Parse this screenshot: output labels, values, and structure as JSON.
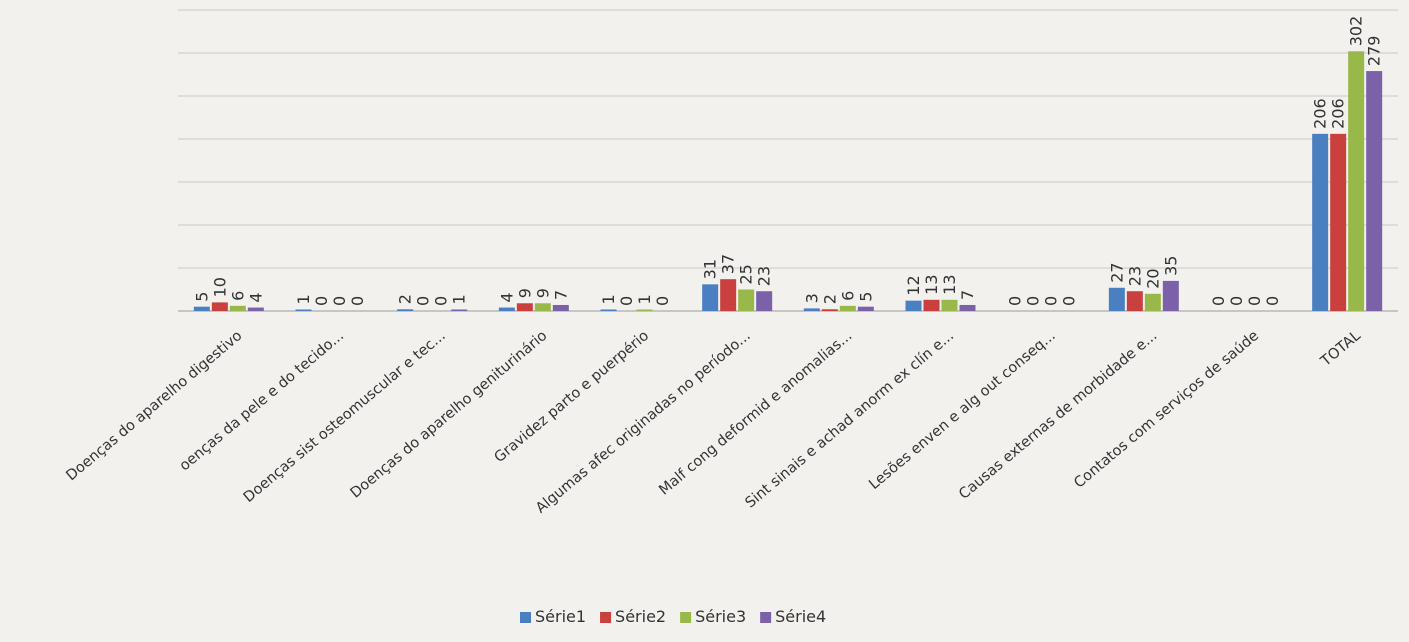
{
  "chart_data": {
    "type": "bar",
    "title": "",
    "xlabel": "",
    "ylabel": "",
    "ylim": [
      0,
      350
    ],
    "grid": true,
    "legend_position": "bottom",
    "categories": [
      "Doenças do aparelho digestivo",
      "oenças da pele e do tecido...",
      "Doenças sist osteomuscular e tec...",
      "Doenças do aparelho geniturinário",
      "Gravidez parto e puerpério",
      "Algumas afec originadas no período...",
      "Malf cong deformid e anomalias...",
      "Sint sinais e achad anorm ex clín e...",
      "Lesões enven e alg out conseq...",
      "Causas externas de morbidade e...",
      "Contatos com serviços de saúde",
      "TOTAL"
    ],
    "series": [
      {
        "name": "Série1",
        "color": "#4a7fc1",
        "values": [
          5,
          1,
          2,
          4,
          1,
          31,
          3,
          12,
          0,
          27,
          0,
          206
        ]
      },
      {
        "name": "Série2",
        "color": "#c9403f",
        "values": [
          10,
          0,
          0,
          9,
          0,
          37,
          2,
          13,
          0,
          23,
          0,
          206
        ]
      },
      {
        "name": "Série3",
        "color": "#98b94a",
        "values": [
          6,
          0,
          0,
          9,
          1,
          25,
          6,
          13,
          0,
          20,
          0,
          302
        ]
      },
      {
        "name": "Série4",
        "color": "#7b62a8",
        "values": [
          4,
          0,
          1,
          7,
          0,
          23,
          5,
          7,
          0,
          35,
          0,
          279
        ]
      }
    ]
  }
}
